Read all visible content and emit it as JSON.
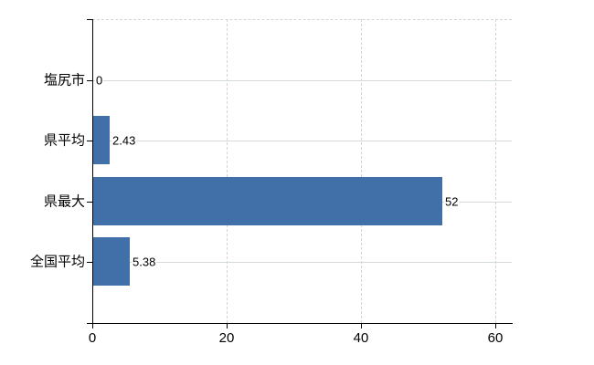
{
  "chart_data": {
    "type": "bar",
    "orientation": "horizontal",
    "categories": [
      "塩尻市",
      "県平均",
      "県最大",
      "全国平均"
    ],
    "values": [
      0,
      2.43,
      52,
      5.38
    ],
    "value_labels": [
      "0",
      "2.43",
      "52",
      "5.38"
    ],
    "series_name": "",
    "xlabel": "",
    "ylabel": "",
    "xlim": [
      0,
      62.5
    ],
    "xticks": [
      0,
      20,
      40,
      60
    ],
    "xtick_labels": [
      "0",
      "20",
      "40",
      "60"
    ],
    "legend": "none",
    "grid": {
      "vertical_style": "dashed",
      "horizontal_style": "solid",
      "top_border_style": "dashed"
    },
    "colors": {
      "bar": "#4170a9",
      "axis": "#000000",
      "horizontal_grid": "#d3dbd3",
      "vertical_grid": "#d7d1d7",
      "text": "#000000",
      "background": "#ffffff"
    }
  }
}
